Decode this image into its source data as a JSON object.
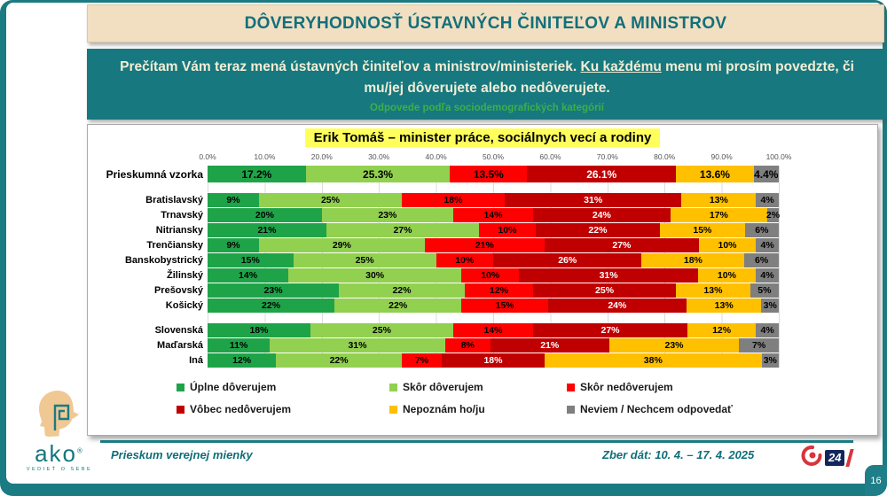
{
  "slide": {
    "page_number": "16",
    "title": "DÔVERYHODNOSŤ ÚSTAVNÝCH ČINITEĽOV A MINISTROV",
    "instruction": {
      "part1": "Prečítam Vám teraz mená ústavných činiteľov a ministrov/ministeriek. ",
      "underlined": "Ku každému",
      "part2": " menu mi prosím povedzte, či mu/jej dôverujete alebo nedôverujete.",
      "subnote": "Odpovede podľa sociodemografických kategórií"
    },
    "footer": {
      "left": "Prieskum verejnej mienky",
      "right": "Zber dát: 10. 4. – 17. 4. 2025",
      "ako_logo_text": "ako",
      "ako_logo_sub": "VEDIEŤ O SEBE",
      "joj_label": "24"
    },
    "accent_teal": "#1B7B83",
    "title_bg": "#F2DFC2"
  },
  "chart_data": {
    "type": "bar",
    "orientation": "horizontal-stacked",
    "title": "Erik Tomáš – minister práce, sociálnych vecí a rodiny",
    "xlabel": "",
    "ylabel": "",
    "xlim": [
      0,
      100
    ],
    "grid": true,
    "x_ticks": [
      "0.0%",
      "10.0%",
      "20.0%",
      "30.0%",
      "40.0%",
      "50.0%",
      "60.0%",
      "70.0%",
      "80.0%",
      "90.0%",
      "100.0%"
    ],
    "legend": [
      "Úplne dôverujem",
      "Skôr dôverujem",
      "Skôr nedôverujem",
      "Vôbec nedôverujem",
      "Nepoznám ho/ju",
      "Neviem / Nechcem odpovedať"
    ],
    "legend_position": "bottom",
    "colors": [
      "#1FA349",
      "#92D050",
      "#FE0000",
      "#C00000",
      "#FFC000",
      "#7F7F7F"
    ],
    "label_text_colors": [
      "#000000",
      "#000000",
      "#000000",
      "#FFFFFF",
      "#000000",
      "#000000"
    ],
    "groups": [
      {
        "name": "total",
        "rows": [
          {
            "label": "Prieskumná vzorka",
            "values": [
              17.2,
              25.3,
              13.5,
              26.1,
              13.6,
              4.4
            ],
            "emphasis": true
          }
        ]
      },
      {
        "name": "regions",
        "rows": [
          {
            "label": "Bratislavský",
            "values": [
              9,
              25,
              18,
              31,
              13,
              4
            ]
          },
          {
            "label": "Trnavský",
            "values": [
              20,
              23,
              14,
              24,
              17,
              2
            ]
          },
          {
            "label": "Nitriansky",
            "values": [
              21,
              27,
              10,
              22,
              15,
              6
            ]
          },
          {
            "label": "Trenčiansky",
            "values": [
              9,
              29,
              21,
              27,
              10,
              4
            ]
          },
          {
            "label": "Banskobystrický",
            "values": [
              15,
              25,
              10,
              26,
              18,
              6
            ]
          },
          {
            "label": "Žilinský",
            "values": [
              14,
              30,
              10,
              31,
              10,
              4
            ]
          },
          {
            "label": "Prešovský",
            "values": [
              23,
              22,
              12,
              25,
              13,
              5
            ]
          },
          {
            "label": "Košický",
            "values": [
              22,
              22,
              15,
              24,
              13,
              3
            ]
          }
        ]
      },
      {
        "name": "nationality",
        "rows": [
          {
            "label": "Slovenská",
            "values": [
              18,
              25,
              14,
              27,
              12,
              4
            ]
          },
          {
            "label": "Maďarská",
            "values": [
              11,
              31,
              8,
              21,
              23,
              7
            ]
          },
          {
            "label": "Iná",
            "values": [
              12,
              22,
              7,
              18,
              38,
              3
            ]
          }
        ]
      }
    ]
  }
}
